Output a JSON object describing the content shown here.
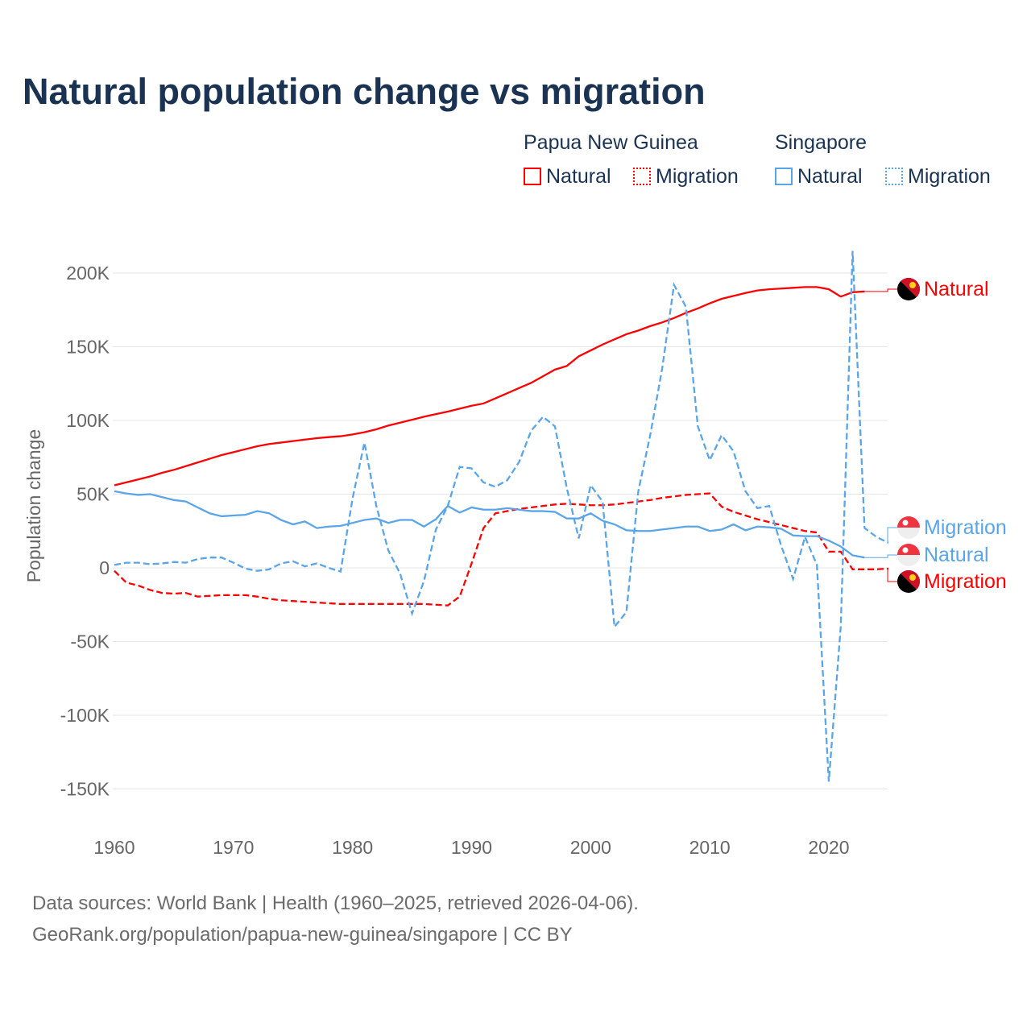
{
  "title": "Natural population change vs migration",
  "legend": {
    "groups": [
      {
        "name": "Papua New Guinea",
        "items": [
          "Natural",
          "Migration"
        ],
        "color": "#ff0000"
      },
      {
        "name": "Singapore",
        "items": [
          "Natural",
          "Migration"
        ],
        "color": "#5aa5e8"
      }
    ]
  },
  "footer": {
    "line1": "Data sources: World Bank | Health (1960–2025, retrieved 2026-04-06).",
    "line2": "GeoRank.org/population/papua-new-guinea/singapore | CC BY"
  },
  "chart_data": {
    "type": "line",
    "title": "Natural population change vs migration",
    "xlabel": "",
    "ylabel": "Population change",
    "xlim": [
      1960,
      2025
    ],
    "ylim": [
      -170000,
      215000
    ],
    "xticks": [
      1960,
      1970,
      1980,
      1990,
      2000,
      2010,
      2020
    ],
    "yticks": [
      {
        "v": 200000,
        "l": "200K"
      },
      {
        "v": 150000,
        "l": "150K"
      },
      {
        "v": 100000,
        "l": "100K"
      },
      {
        "v": 50000,
        "l": "50K"
      },
      {
        "v": 0,
        "l": "0"
      },
      {
        "v": -50000,
        "l": "-50K"
      },
      {
        "v": -100000,
        "l": "-100K"
      },
      {
        "v": -150000,
        "l": "-150K"
      }
    ],
    "grid": true,
    "series": [
      {
        "name": "Papua New Guinea Natural",
        "label": "Natural",
        "color": "#ff0000",
        "dash": false,
        "start": 1960,
        "values_k": [
          56,
          58,
          60,
          62,
          64.5,
          66.5,
          69,
          71.5,
          74,
          76.5,
          78.5,
          80.5,
          82.5,
          84,
          85,
          86,
          87,
          88,
          88.7,
          89.3,
          90.5,
          92,
          94,
          96.5,
          98.5,
          100.5,
          102.5,
          104.3,
          106,
          108,
          110,
          111.5,
          115,
          118.5,
          122,
          125.5,
          130,
          134.5,
          137,
          143.5,
          147.5,
          151.5,
          155,
          158.5,
          161,
          164,
          166.5,
          169.5,
          173,
          176,
          179.5,
          182.5,
          184.5,
          186.5,
          188.2,
          189,
          189.5,
          190,
          190.5,
          190.5,
          189,
          184,
          187,
          187.5
        ]
      },
      {
        "name": "Papua New Guinea Migration",
        "label": "Migration",
        "color": "#ff0000",
        "dash": true,
        "start": 1960,
        "values_k": [
          -2,
          -10,
          -12,
          -15,
          -17,
          -17.5,
          -17,
          -19.5,
          -19,
          -18.5,
          -18.5,
          -18.5,
          -19.5,
          -21,
          -22,
          -22.5,
          -23,
          -23.5,
          -24,
          -24.5,
          -24.5,
          -24.5,
          -24.5,
          -24.5,
          -24.5,
          -24.5,
          -24.5,
          -25,
          -25.5,
          -19.5,
          3,
          27,
          37,
          38.5,
          40,
          41,
          42,
          43,
          43.5,
          43,
          42.5,
          42.5,
          43,
          44,
          45,
          46,
          47.5,
          48.5,
          49.5,
          50,
          50.5,
          41.5,
          38,
          35.5,
          33,
          31,
          29,
          27,
          25,
          24,
          11,
          11,
          -1,
          -1,
          -1,
          -0.5
        ]
      },
      {
        "name": "Singapore Natural",
        "label": "Natural",
        "color": "#5aa5e8",
        "dash": false,
        "start": 1960,
        "values_k": [
          52,
          50.5,
          49.5,
          50,
          48,
          46,
          45,
          41,
          37,
          35,
          35.5,
          36,
          38.5,
          37,
          32.5,
          29.5,
          31.5,
          27,
          28,
          28.5,
          30.5,
          32.5,
          33.5,
          30.5,
          32.5,
          32.5,
          28,
          33,
          42,
          37.5,
          41,
          39.5,
          39.5,
          40.5,
          39.5,
          38.5,
          38.5,
          38,
          33.5,
          33.5,
          37,
          32,
          29.5,
          25.5,
          25,
          25,
          26,
          27,
          28,
          28,
          25,
          26,
          29.5,
          25.5,
          28,
          27.5,
          26.5,
          22,
          21.5,
          21.5,
          18.5,
          14.5,
          8.5,
          7
        ]
      },
      {
        "name": "Singapore Migration",
        "label": "Migration",
        "color": "#5aa5e8",
        "dash": true,
        "start": 1960,
        "values_k": [
          2,
          3.5,
          3.5,
          2.5,
          3,
          4,
          3.5,
          6,
          7,
          7,
          3.5,
          -0.5,
          -2,
          -1,
          3,
          4.5,
          1,
          3,
          0,
          -2.5,
          47,
          85,
          42,
          12,
          -4,
          -31,
          -9,
          26,
          42,
          68.5,
          67.5,
          58,
          55,
          59.5,
          72,
          93,
          102.5,
          96,
          54,
          20,
          56,
          45,
          -40,
          -30,
          52,
          90,
          135,
          192,
          177,
          96,
          73,
          90,
          79,
          52,
          40.5,
          42,
          15,
          -7.5,
          21,
          2,
          -145,
          -40,
          215,
          27,
          21,
          17
        ]
      }
    ]
  }
}
